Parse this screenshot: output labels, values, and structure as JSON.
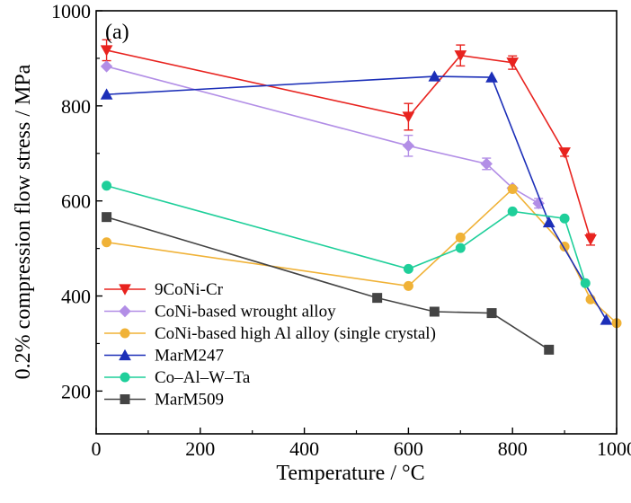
{
  "chart_data": {
    "type": "line",
    "panel_label": "(a)",
    "xlabel": "Temperature / °C",
    "ylabel": "0.2% compression flow stress / MPa",
    "xlim": [
      0,
      1000
    ],
    "ylim": [
      110,
      1000
    ],
    "xticks": [
      0,
      200,
      400,
      600,
      800,
      1000
    ],
    "yticks": [
      200,
      400,
      600,
      800,
      1000
    ],
    "grid": false,
    "legend_position": "bottom-left",
    "series": [
      {
        "name": "9CoNi-Cr",
        "color": "#e8231f",
        "marker": "triangle-down",
        "x": [
          20,
          600,
          700,
          800,
          900,
          950
        ],
        "y": [
          917,
          777,
          906,
          891,
          702,
          519
        ],
        "err": [
          22,
          28,
          22,
          14,
          8,
          12
        ]
      },
      {
        "name": "CoNi-based wrought alloy",
        "color": "#b28ee6",
        "marker": "diamond",
        "x": [
          20,
          600,
          750,
          800,
          850
        ],
        "y": [
          883,
          716,
          678,
          627,
          595
        ],
        "err": [
          0,
          22,
          12,
          0,
          10
        ]
      },
      {
        "name": "CoNi-based high Al alloy (single crystal)",
        "color": "#f0b237",
        "marker": "circle",
        "x": [
          20,
          600,
          700,
          800,
          900,
          950,
          1000
        ],
        "y": [
          513,
          421,
          523,
          625,
          504,
          393,
          343
        ],
        "err": []
      },
      {
        "name": "MarM247",
        "color": "#1c2fb8",
        "marker": "triangle-up",
        "x": [
          20,
          650,
          760,
          870,
          980
        ],
        "y": [
          824,
          862,
          860,
          555,
          350
        ],
        "err": []
      },
      {
        "name": "Co–Al–W–Ta",
        "color": "#1fcf9a",
        "marker": "circle",
        "x": [
          20,
          600,
          700,
          800,
          900,
          940
        ],
        "y": [
          632,
          457,
          501,
          578,
          563,
          427
        ],
        "err": []
      },
      {
        "name": "MarM509",
        "color": "#444444",
        "marker": "square",
        "x": [
          20,
          540,
          650,
          760,
          870
        ],
        "y": [
          566,
          396,
          367,
          364,
          287
        ],
        "err": []
      }
    ]
  }
}
